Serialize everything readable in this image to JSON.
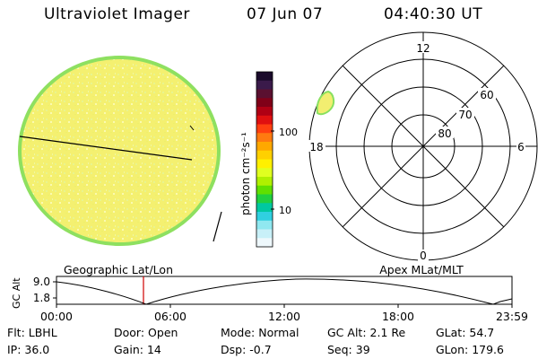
{
  "header": {
    "title": "Ultraviolet Imager",
    "date": "07 Jun 07",
    "time": "04:40:30 UT"
  },
  "colorbar": {
    "unit_label": "photon cm⁻²s⁻¹",
    "ticks": [
      "100",
      "10"
    ],
    "colors": [
      "#1a0a2a",
      "#3a1a4a",
      "#5a1030",
      "#800018",
      "#b00014",
      "#e01010",
      "#ff4010",
      "#ff7a10",
      "#ffa800",
      "#ffd000",
      "#fff000",
      "#e0ff20",
      "#b0f000",
      "#60e000",
      "#20d040",
      "#00c8a0",
      "#30d0e0",
      "#90e8f0",
      "#c8f0f8",
      "#eef8fc"
    ]
  },
  "left_panel": {
    "caption": "Geographic Lat/Lon",
    "disk_fill": "#f4f070",
    "disk_edge": "#8ee060"
  },
  "right_panel": {
    "caption": "Apex MLat/MLT",
    "mlt_labels": [
      "12",
      "18",
      "6",
      "0"
    ],
    "lat_labels": [
      "60",
      "70",
      "80"
    ]
  },
  "timeline": {
    "y_axis_title": "GC Alt",
    "y_ticks": [
      "9.0",
      "1.8"
    ],
    "x_ticks": [
      "00:00",
      "06:00",
      "12:00",
      "18:00",
      "23:59"
    ]
  },
  "info": {
    "row1": [
      {
        "label": "Flt:",
        "value": "LBHL"
      },
      {
        "label": "Door:",
        "value": "Open"
      },
      {
        "label": "Mode:",
        "value": "Normal"
      },
      {
        "label": "GC Alt:",
        "value": "2.1 Re"
      },
      {
        "label": "GLat:",
        "value": "54.7"
      }
    ],
    "row2": [
      {
        "label": "IP:",
        "value": "36.0"
      },
      {
        "label": "Gain:",
        "value": "14"
      },
      {
        "label": "Dsp:",
        "value": "-0.7"
      },
      {
        "label": "Seq:",
        "value": "39"
      },
      {
        "label": "GLon:",
        "value": "179.6"
      }
    ]
  }
}
